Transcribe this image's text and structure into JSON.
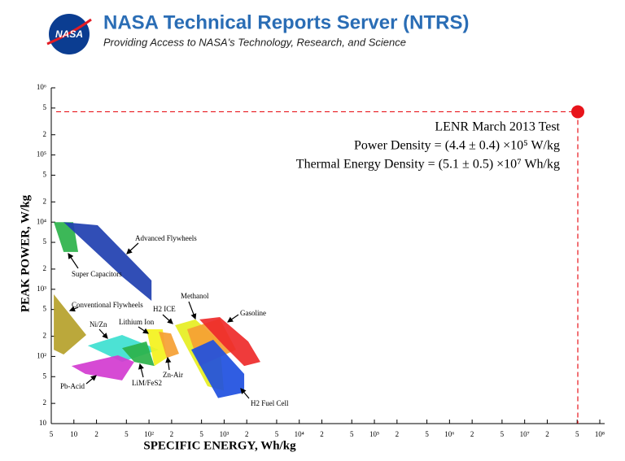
{
  "header": {
    "logo": "NASA",
    "title": "NASA Technical Reports Server (NTRS)",
    "subtitle": "Providing Access to NASA's Technology, Research, and Science"
  },
  "chart_data": {
    "type": "ragone",
    "log_x": true,
    "log_y": true,
    "xlabel": "SPECIFIC ENERGY, Wh/kg",
    "ylabel": "PEAK POWER, W/kg",
    "xlim": [
      5,
      100000000
    ],
    "ylim": [
      10,
      1000000
    ],
    "xticks": [
      5,
      10,
      {
        "value": 20,
        "label": "2"
      },
      {
        "value": 50,
        "label": "5"
      },
      {
        "value": 100,
        "label": "10²"
      },
      {
        "value": 200,
        "label": "2"
      },
      {
        "value": 500,
        "label": "5"
      },
      {
        "value": 1000,
        "label": "10³"
      },
      {
        "value": 2000,
        "label": "2"
      },
      {
        "value": 5000,
        "label": "5"
      },
      {
        "value": 10000,
        "label": "10⁴"
      },
      {
        "value": 20000,
        "label": "2"
      },
      {
        "value": 50000,
        "label": "5"
      },
      {
        "value": 100000,
        "label": "10⁵"
      },
      {
        "value": 200000,
        "label": "2"
      },
      {
        "value": 500000,
        "label": "5"
      },
      {
        "value": 1000000,
        "label": "10⁶"
      },
      {
        "value": 2000000,
        "label": "2"
      },
      {
        "value": 5000000,
        "label": "5"
      },
      {
        "value": 10000000,
        "label": "10⁷"
      },
      {
        "value": 20000000,
        "label": "2"
      },
      {
        "value": 50000000,
        "label": "5"
      },
      {
        "value": 100000000,
        "label": "10⁸"
      }
    ],
    "yticks": [
      10,
      {
        "value": 20,
        "label": "2"
      },
      {
        "value": 50,
        "label": "5"
      },
      {
        "value": 100,
        "label": "10²"
      },
      {
        "value": 200,
        "label": "2"
      },
      {
        "value": 500,
        "label": "5"
      },
      {
        "value": 1000,
        "label": "10³"
      },
      {
        "value": 2000,
        "label": "2"
      },
      {
        "value": 5000,
        "label": "5"
      },
      {
        "value": 10000,
        "label": "10⁴"
      },
      {
        "value": 20000,
        "label": "2"
      },
      {
        "value": 50000,
        "label": "5"
      },
      {
        "value": 100000,
        "label": "10⁵"
      },
      {
        "value": 200000,
        "label": "2"
      },
      {
        "value": 500000,
        "label": "5"
      },
      {
        "value": 1000000,
        "label": "10⁶"
      }
    ],
    "regions": [
      {
        "name": "Super Capacitors",
        "color": "#2bb24a",
        "x": [
          5.4,
          9.8,
          11.4,
          7.3
        ],
        "y": [
          10000,
          10000,
          3600,
          3600
        ]
      },
      {
        "name": "Advanced Flywheels",
        "color": "#1f3fb0",
        "x": [
          7.3,
          20.7,
          108,
          108,
          43.8
        ],
        "y": [
          10000,
          9000,
          1350,
          673,
          1550
        ]
      },
      {
        "name": "Conventional Flywheels",
        "color": "#b5a12a",
        "x": [
          5.4,
          14.6,
          7.3,
          5.4
        ],
        "y": [
          841,
          209,
          107,
          126
        ]
      },
      {
        "name": "Ni/Zn",
        "color": "#3de0d0",
        "x": [
          15.3,
          43.8,
          134.6,
          43.8
        ],
        "y": [
          145,
          209,
          126,
          83
        ]
      },
      {
        "name": "Pb-Acid",
        "color": "#d23bd0",
        "x": [
          9.3,
          38.6,
          63.5,
          43.8,
          14.2
        ],
        "y": [
          72,
          104,
          83,
          44,
          55
        ]
      },
      {
        "name": "LiM/FeS2",
        "color": "#2bb24a",
        "x": [
          43.8,
          92.6,
          118,
          63.5
        ],
        "y": [
          133,
          167,
          72,
          83
        ]
      },
      {
        "name": "Lithium Ion",
        "color": "#f4f21c",
        "x": [
          92.6,
          152,
          172,
          118
        ],
        "y": [
          254,
          254,
          95,
          72
        ]
      },
      {
        "name": "Zn-Air",
        "color": "#f5a033",
        "x": [
          134.6,
          196,
          251,
          172
        ],
        "y": [
          233,
          220,
          110,
          95
        ]
      },
      {
        "name": "H2 ICE",
        "color": "#e6ee22",
        "x": [
          222,
          414,
          875,
          991,
          601
        ],
        "y": [
          292,
          356,
          167,
          31,
          36
        ]
      },
      {
        "name": "Methanol",
        "color": "#f5a033",
        "x": [
          322,
          875,
          1440,
          469
        ],
        "y": [
          254,
          365,
          126,
          72
        ]
      },
      {
        "name": "H2 Fuel Cell",
        "color": "#1e4fe0",
        "x": [
          365,
          716,
          1849,
          1849,
          831
        ],
        "y": [
          126,
          177,
          55,
          29,
          24
        ]
      },
      {
        "name": "Gasoline",
        "color": "#ee2a2a",
        "x": [
          469,
          875,
          2094,
          3040,
          1849,
          991
        ],
        "y": [
          356,
          385,
          167,
          83,
          72,
          145
        ]
      }
    ],
    "marker": {
      "x": 51000000,
      "y": 440000,
      "color": "#e8141b"
    },
    "annotations": [
      "LENR March 2013 Test",
      "Power Density = (4.4 ± 0.4) ×10⁵ W/kg",
      "Thermal Energy Density = (5.1 ± 0.5) ×10⁷ Wh/kg"
    ]
  }
}
